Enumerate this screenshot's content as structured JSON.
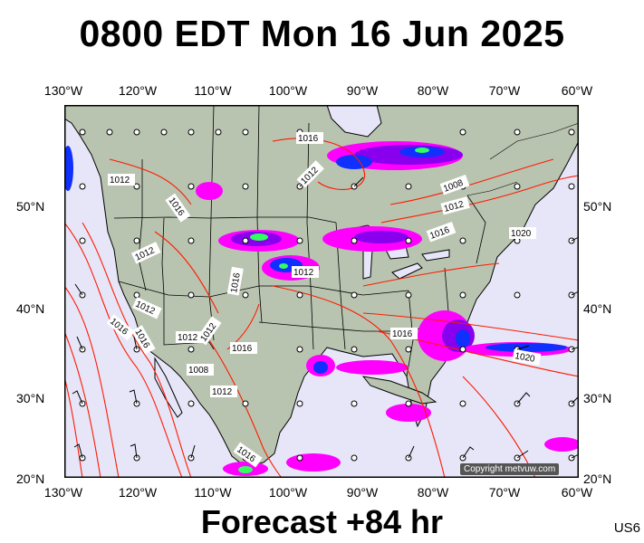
{
  "title": "0800 EDT Mon 16 Jun 2025",
  "footer": "Forecast +84 hr",
  "region_code": "US6",
  "copyright": "Copyright metvuw.com",
  "lon_labels": [
    "130°W",
    "120°W",
    "110°W",
    "100°W",
    "90°W",
    "80°W",
    "70°W",
    "60°W"
  ],
  "lat_labels": [
    "50°N",
    "40°N",
    "30°N",
    "20°N"
  ],
  "isobar_labels": [
    "1016",
    "1012",
    "1016",
    "1012",
    "1008",
    "1012",
    "1016",
    "1020",
    "1012",
    "1012",
    "1016",
    "1016",
    "1012",
    "1012",
    "1012",
    "1016",
    "1008",
    "1012",
    "1016",
    "1016",
    "1020",
    "1016"
  ],
  "colors": {
    "ocean": "#e6e6f8",
    "land": "#b9c4b0",
    "isobar": "#ff1a00",
    "rain_light": "#ff00ff",
    "rain_mid": "#8800ee",
    "rain_heavy": "#1030ff",
    "rain_extreme": "#30ff60"
  }
}
